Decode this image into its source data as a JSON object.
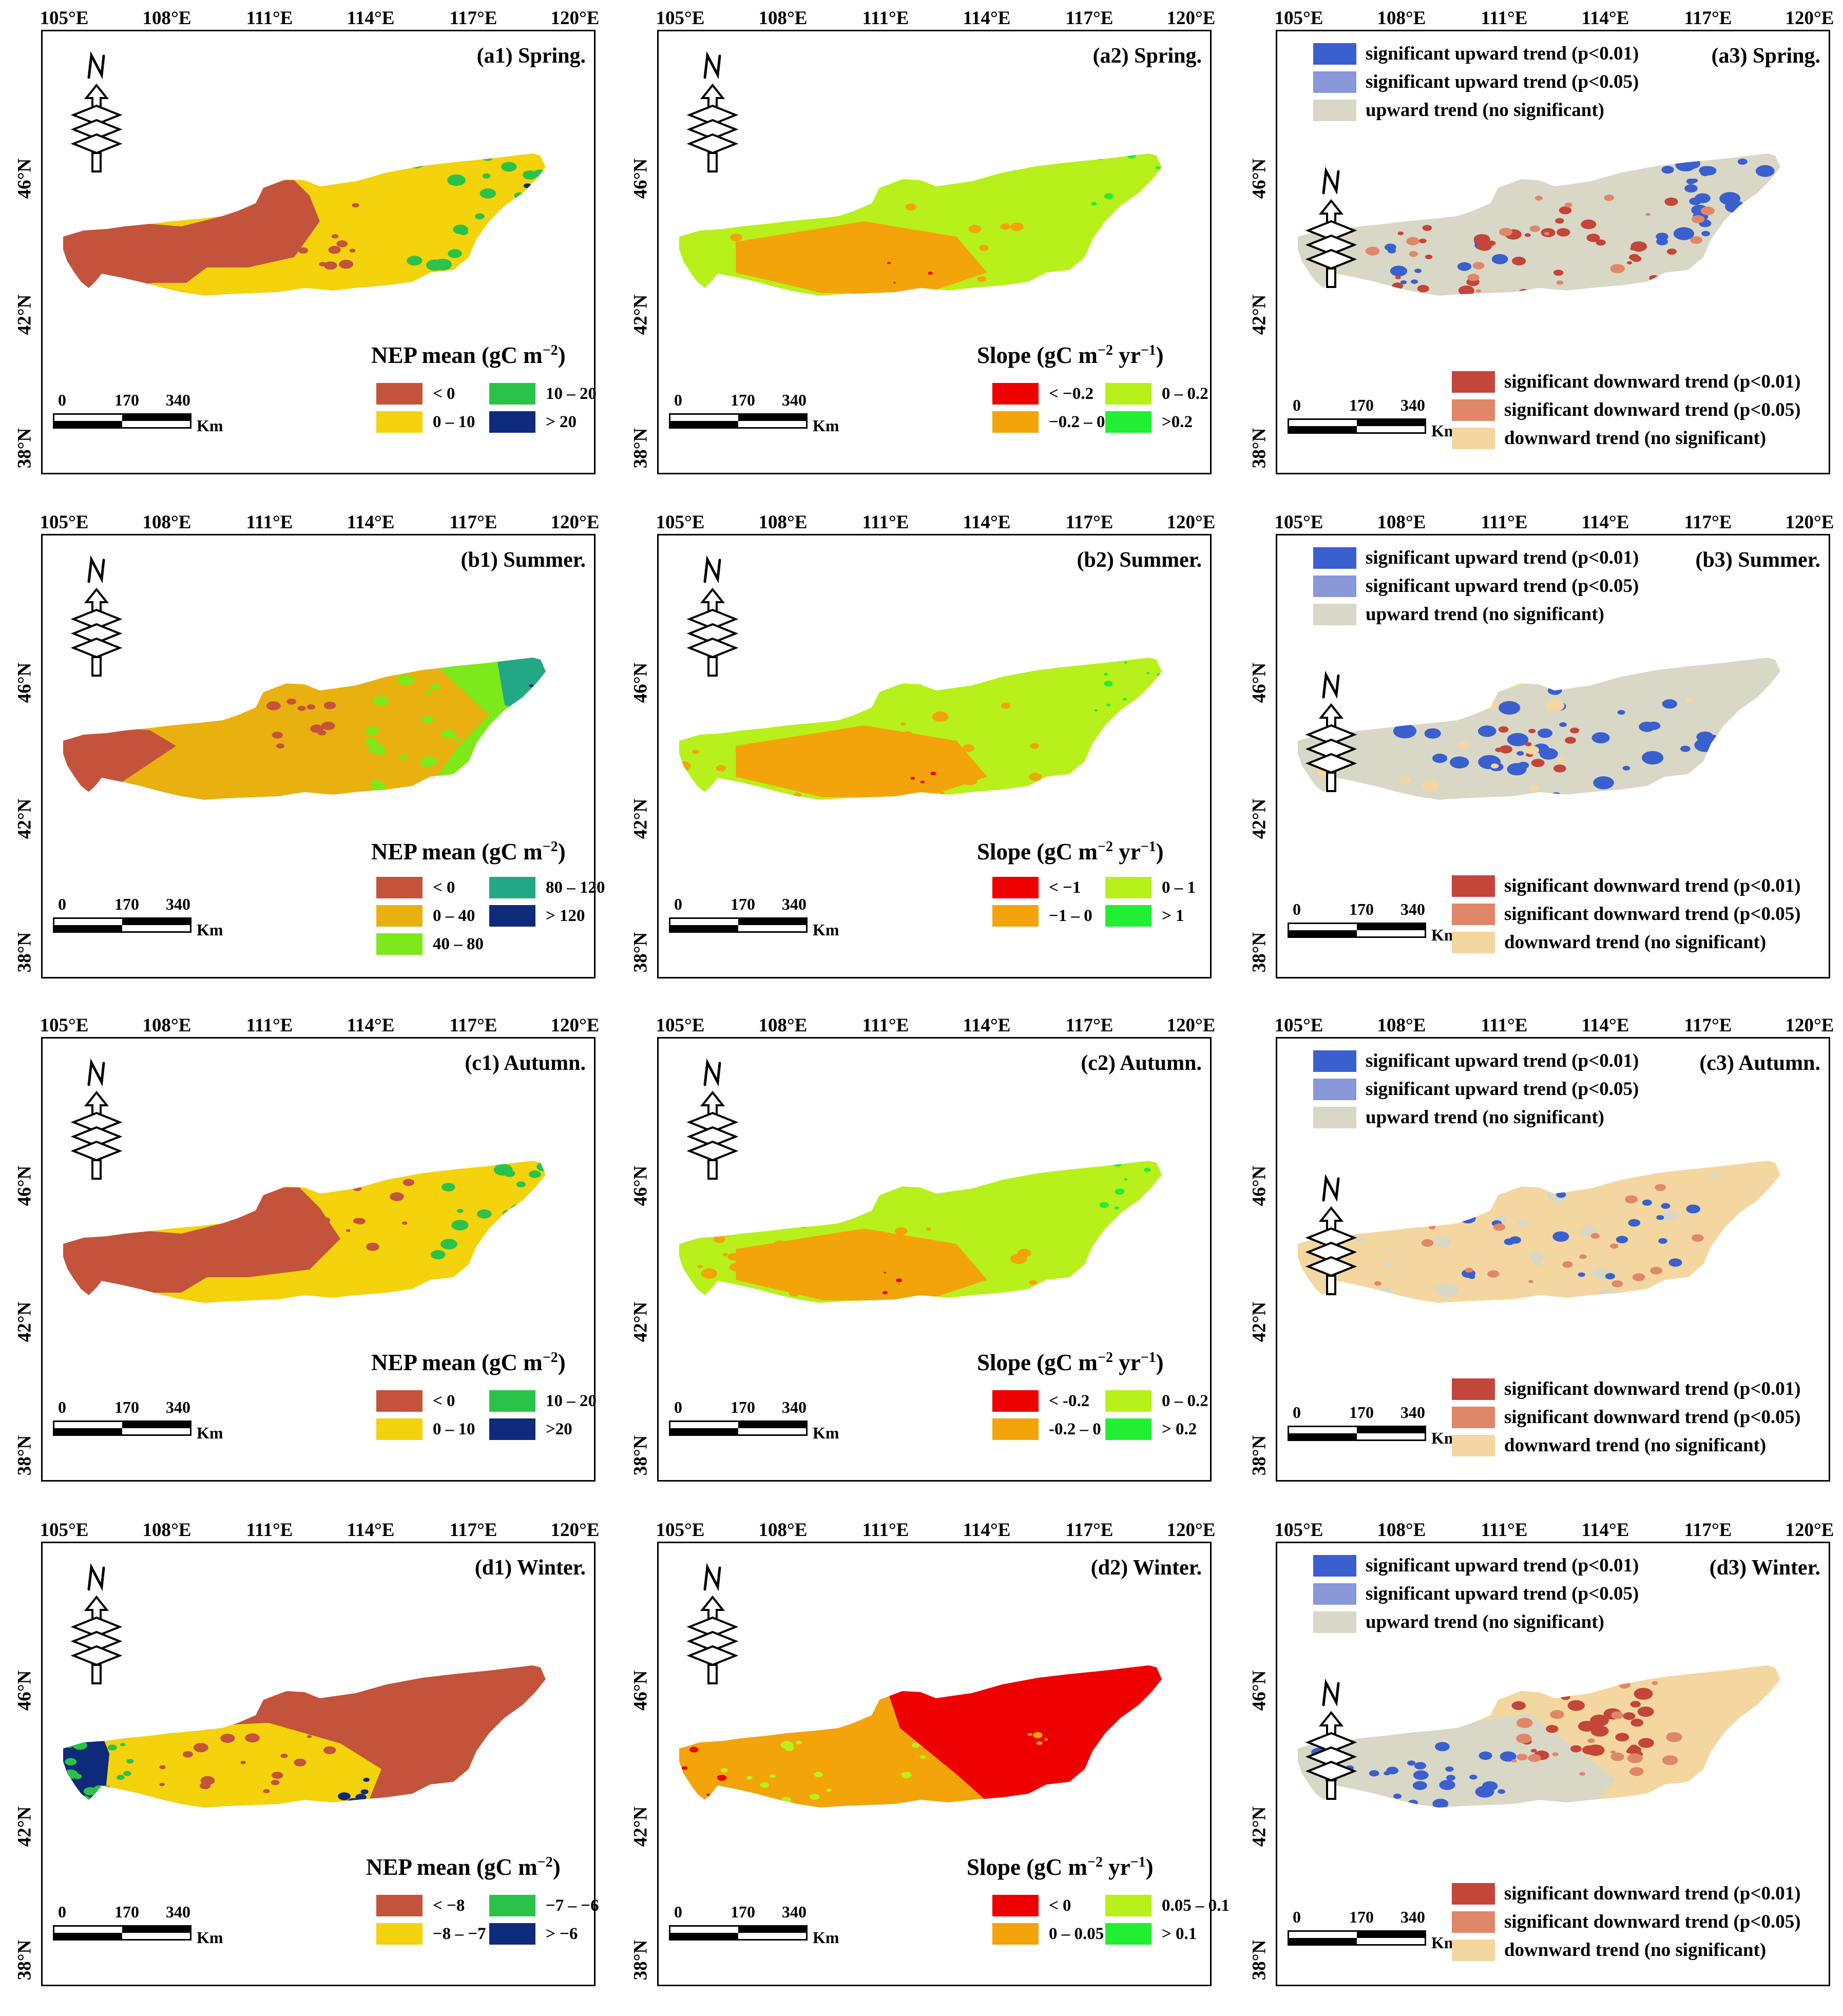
{
  "longitudes": [
    "105°E",
    "108°E",
    "111°E",
    "114°E",
    "117°E",
    "120°E"
  ],
  "latitudes": [
    "46°N",
    "42°N",
    "38°N"
  ],
  "north_label": "N",
  "scale": {
    "ticks": [
      "0",
      "170",
      "340"
    ],
    "unit": "Km"
  },
  "seasons": [
    {
      "key": "spring",
      "mean": {
        "title": "(a1) Spring.",
        "legend_title": "NEP mean (gC m−2)",
        "legend_base": "NEP mean (gC m",
        "legend_exp": "−2",
        "legend_tail": ")",
        "classes": [
          {
            "label": "< 0",
            "color": "#c4533b"
          },
          {
            "label": "0 – 10",
            "color": "#f4d20c"
          },
          {
            "label": "10 – 20",
            "color": "#2bc24a"
          },
          {
            "label": "> 20",
            "color": "#0e2a7a"
          }
        ]
      },
      "slope": {
        "title": "(a2) Spring.",
        "legend_title": "Slope (gC m−2 yr−1)",
        "legend_base": "Slope (gC m",
        "legend_exp": "−2",
        "legend_mid": " yr",
        "legend_exp2": "−1",
        "legend_tail": ")",
        "classes": [
          {
            "label": "< −0.2",
            "color": "#ee0000"
          },
          {
            "label": "−0.2 – 0",
            "color": "#f3a40a"
          },
          {
            "label": "0 – 0.2",
            "color": "#b8f01c"
          },
          {
            "label": ">0.2",
            "color": "#22ee33"
          }
        ]
      },
      "trend": {
        "title": "(a3) Spring."
      }
    },
    {
      "key": "summer",
      "mean": {
        "title": "(b1) Summer.",
        "legend_title": "NEP mean (gC m−2)",
        "legend_base": "NEP mean (gC m",
        "legend_exp": "−2",
        "legend_tail": ")",
        "classes": [
          {
            "label": "< 0",
            "color": "#c4533b"
          },
          {
            "label": "0 – 40",
            "color": "#e8b10f"
          },
          {
            "label": "40 – 80",
            "color": "#7de81a"
          },
          {
            "label": "80 – 120",
            "color": "#22a884"
          },
          {
            "label": "> 120",
            "color": "#0e2a7a"
          }
        ]
      },
      "slope": {
        "title": "(b2) Summer.",
        "legend_title": "Slope (gC m−2 yr−1)",
        "legend_base": "Slope (gC m",
        "legend_exp": "−2",
        "legend_mid": " yr",
        "legend_exp2": "−1",
        "legend_tail": ")",
        "classes": [
          {
            "label": "< −1",
            "color": "#ee0000"
          },
          {
            "label": "−1 – 0",
            "color": "#f3a40a"
          },
          {
            "label": "0 – 1",
            "color": "#b8f01c"
          },
          {
            "label": "> 1",
            "color": "#22ee33"
          }
        ]
      },
      "trend": {
        "title": "(b3) Summer."
      }
    },
    {
      "key": "autumn",
      "mean": {
        "title": "(c1) Autumn.",
        "legend_title": "NEP mean (gC m−2)",
        "legend_base": "NEP mean (gC m",
        "legend_exp": "−2",
        "legend_tail": ")",
        "classes": [
          {
            "label": "< 0",
            "color": "#c4533b"
          },
          {
            "label": "0 – 10",
            "color": "#f4d20c"
          },
          {
            "label": "10 – 20",
            "color": "#2bc24a"
          },
          {
            "label": ">20",
            "color": "#0e2a7a"
          }
        ]
      },
      "slope": {
        "title": "(c2) Autumn.",
        "legend_title": "Slope (gC m−2 yr−1)",
        "legend_base": "Slope (gC m",
        "legend_exp": "−2",
        "legend_mid": " yr",
        "legend_exp2": "−1",
        "legend_tail": ")",
        "classes": [
          {
            "label": "< -0.2",
            "color": "#ee0000"
          },
          {
            "label": "-0.2 – 0",
            "color": "#f3a40a"
          },
          {
            "label": "0 – 0.2",
            "color": "#b8f01c"
          },
          {
            "label": "> 0.2",
            "color": "#22ee33"
          }
        ]
      },
      "trend": {
        "title": "(c3) Autumn."
      }
    },
    {
      "key": "winter",
      "mean": {
        "title": "(d1) Winter.",
        "legend_title": "NEP mean (gC m−2)",
        "legend_base": "NEP mean (gC m",
        "legend_exp": "−2",
        "legend_tail": ")",
        "classes": [
          {
            "label": "< −8",
            "color": "#c4533b"
          },
          {
            "label": "−8 – −7",
            "color": "#f4d20c"
          },
          {
            "label": "−7 – −6",
            "color": "#2bc24a"
          },
          {
            "label": "> −6",
            "color": "#0e2a7a"
          }
        ]
      },
      "slope": {
        "title": "(d2) Winter.",
        "legend_title": "Slope (gC m−2 yr−1)",
        "legend_base": "Slope (gC m",
        "legend_exp": "−2",
        "legend_mid": " yr",
        "legend_exp2": "−1",
        "legend_tail": ")",
        "classes": [
          {
            "label": "< 0",
            "color": "#ee0000"
          },
          {
            "label": "0 – 0.05",
            "color": "#f3a40a"
          },
          {
            "label": "0.05 – 0.1",
            "color": "#b8f01c"
          },
          {
            "label": "> 0.1",
            "color": "#22ee33"
          }
        ]
      },
      "trend": {
        "title": "(d3) Winter."
      }
    }
  ],
  "trend_legend": {
    "upward": [
      {
        "label": "significant upward trend (p<0.01)",
        "color": "#3a5fcf"
      },
      {
        "label": "significant upward trend (p<0.05)",
        "color": "#8898d8"
      },
      {
        "label": "upward trend (no significant)",
        "color": "#d9d8c6"
      }
    ],
    "downward": [
      {
        "label": "significant downward trend (p<0.01)",
        "color": "#c4453a"
      },
      {
        "label": "significant downward trend (p<0.05)",
        "color": "#e0876a"
      },
      {
        "label": "downward trend (no significant)",
        "color": "#f4d7a0"
      }
    ]
  }
}
